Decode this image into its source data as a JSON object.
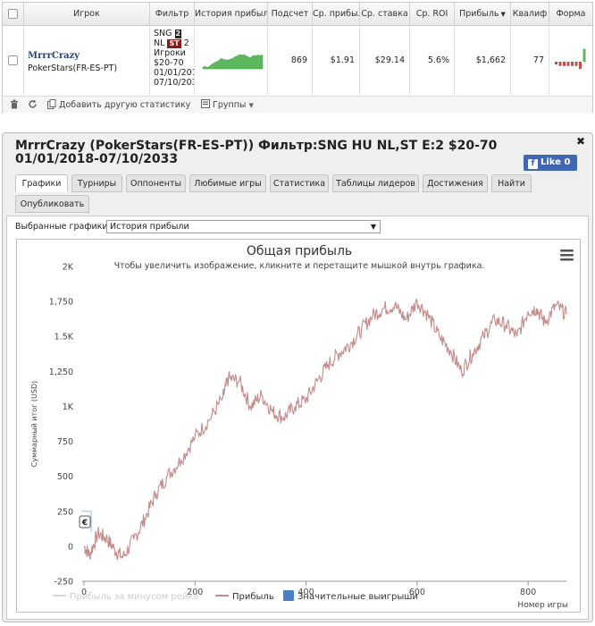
{
  "stats_table": {
    "headers": [
      "Игрок",
      "Фильтр",
      "История прибыль",
      "Подсчет",
      "Ср. прибыль",
      "Ср. ставка",
      "Ср. ROI",
      "Прибыль",
      "Квалиф",
      "Форма"
    ],
    "row": {
      "player_name": "MrrrCrazy",
      "player_site": "PokerStars(FR-ES-PT)",
      "filter_lines": [
        "SNG",
        "NL",
        "2",
        "Игроки",
        "$20-70",
        "01/01/201",
        "07/10/203"
      ],
      "filter_badge_players": "2",
      "filter_badge_speed": "ST",
      "count": "869",
      "avg_profit": "$1.91",
      "avg_stake": "$29.14",
      "avg_roi": "5.6%",
      "profit": "$1,662",
      "qualify": "77"
    },
    "sparkline_color": "#5cb85c",
    "form_bars": [
      {
        "sign": "neg",
        "h": 0.2
      },
      {
        "sign": "neg",
        "h": 0.3
      },
      {
        "sign": "neg",
        "h": 0.3
      },
      {
        "sign": "neg",
        "h": 0.3
      },
      {
        "sign": "neg",
        "h": 0.3
      },
      {
        "sign": "neg",
        "h": 0.3
      },
      {
        "sign": "neg",
        "h": 0.5
      },
      {
        "sign": "pos",
        "h": 0.9
      }
    ]
  },
  "toolbar": {
    "add_stat_label": "Добавить другую статистику",
    "groups_label": "Группы"
  },
  "window": {
    "title": "MrrrCrazy (PokerStars(FR-ES-PT)) Фильтр:SNG HU NL,ST E:2 $20-70 01/01/2018-07/10/2033",
    "like_label": "Like 0",
    "tabs": [
      "Графики",
      "Турниры",
      "Оппоненты",
      "Любимые игры",
      "Статистика",
      "Таблицы лидеров",
      "Достижения",
      "Найти",
      "Опубликовать"
    ],
    "active_tab": 0,
    "selector_label": "Выбранные графики:",
    "selector_value": "История прибыли"
  },
  "chart_data": {
    "type": "line",
    "title": "Общая прибыль",
    "subtitle": "Чтобы увеличить изображение, кликните и перетащите мышкой внутрь графика.",
    "ylabel": "Суммарный итог (USD)",
    "xlabel": "Номер игры",
    "xlim": [
      0,
      869
    ],
    "ylim": [
      -250,
      2000
    ],
    "x_ticks": [
      0,
      200,
      400,
      600,
      800
    ],
    "y_ticks": [
      -250,
      0,
      250,
      500,
      750,
      1000,
      1250,
      1500,
      1750,
      2000
    ],
    "y_tick_labels": [
      "-250",
      "0",
      "250",
      "500",
      "750",
      "1K",
      "1,250",
      "1.5K",
      "1,750",
      "2K"
    ],
    "grid": false,
    "legend_position": "bottom",
    "legend": [
      {
        "name": "Прибыль за минусом рейка",
        "color": "#d8d8d8",
        "kind": "line",
        "muted": true
      },
      {
        "name": "Прибыль",
        "color": "#c48a8a",
        "kind": "line",
        "muted": false
      },
      {
        "name": "Значительные выигрыши",
        "color": "#4a7fc8",
        "kind": "box",
        "muted": false
      }
    ],
    "series": [
      {
        "name": "Прибыль",
        "color": "#c48a8a",
        "x": [
          0,
          10,
          25,
          40,
          55,
          70,
          90,
          110,
          130,
          150,
          175,
          200,
          225,
          250,
          260,
          280,
          300,
          320,
          340,
          360,
          380,
          400,
          420,
          440,
          460,
          480,
          500,
          520,
          540,
          560,
          580,
          600,
          620,
          640,
          660,
          680,
          700,
          720,
          740,
          760,
          780,
          800,
          815,
          830,
          850,
          869
        ],
        "values": [
          0,
          -60,
          90,
          60,
          -20,
          -80,
          50,
          200,
          380,
          500,
          620,
          780,
          900,
          1060,
          1200,
          1180,
          1000,
          1080,
          960,
          920,
          1000,
          1050,
          1180,
          1300,
          1380,
          1450,
          1550,
          1650,
          1700,
          1720,
          1620,
          1750,
          1650,
          1500,
          1400,
          1250,
          1380,
          1500,
          1620,
          1580,
          1500,
          1680,
          1700,
          1600,
          1720,
          1662
        ]
      }
    ]
  }
}
